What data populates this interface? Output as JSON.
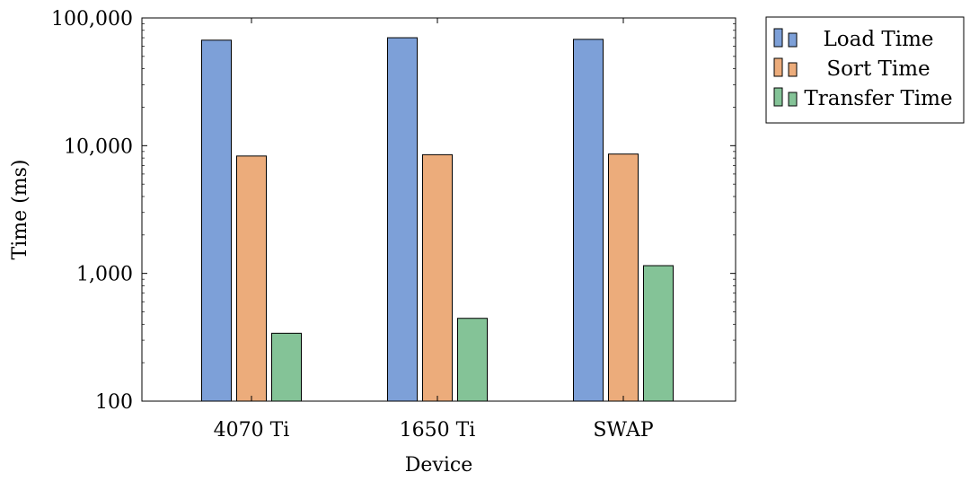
{
  "chart_data": {
    "type": "bar",
    "xlabel": "Device",
    "ylabel": "Time (ms)",
    "yscale": "log",
    "ylim": [
      100,
      100000
    ],
    "grid": false,
    "legend_position": "outside-top-right",
    "categories": [
      "4070 Ti",
      "1650 Ti",
      "SWAP"
    ],
    "y_ticks": [
      100,
      1000,
      10000,
      100000
    ],
    "y_tick_labels": [
      "100",
      "1,000",
      "10,000",
      "100,000"
    ],
    "series": [
      {
        "name": "Load Time",
        "color": "#7da0d8",
        "values": [
          67000,
          70000,
          68000
        ]
      },
      {
        "name": "Sort Time",
        "color": "#ecac7b",
        "values": [
          8300,
          8500,
          8600
        ]
      },
      {
        "name": "Transfer Time",
        "color": "#84c397",
        "values": [
          340,
          445,
          1150
        ]
      }
    ]
  }
}
